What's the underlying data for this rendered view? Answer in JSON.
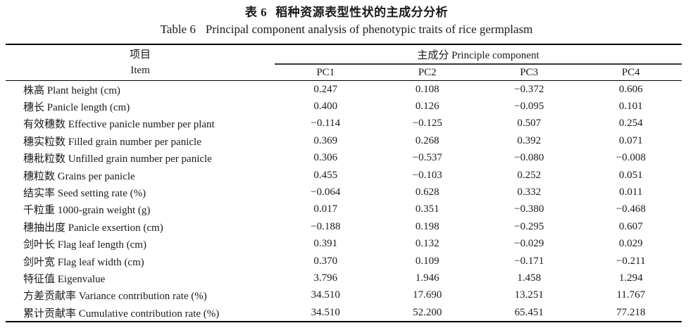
{
  "page": {
    "title_zh_label": "表 6",
    "title_zh_text": "稻种资源表型性状的主成分分析",
    "title_en_label": "Table 6",
    "title_en_text": "Principal component analysis of phenotypic traits of rice germplasm"
  },
  "table": {
    "item_header_zh": "项目",
    "item_header_en": "Item",
    "group_header": "主成分 Principle component",
    "pc_columns": [
      "PC1",
      "PC2",
      "PC3",
      "PC4"
    ],
    "rows": [
      {
        "label": "株高 Plant height (cm)",
        "values": [
          "0.247",
          "0.108",
          "−0.372",
          "0.606"
        ]
      },
      {
        "label": "穗长 Panicle length (cm)",
        "values": [
          "0.400",
          "0.126",
          "−0.095",
          "0.101"
        ]
      },
      {
        "label": "有效穗数 Effective panicle number per plant",
        "values": [
          "−0.114",
          "−0.125",
          "0.507",
          "0.254"
        ]
      },
      {
        "label": "穗实粒数 Filled grain number per panicle",
        "values": [
          "0.369",
          "0.268",
          "0.392",
          "0.071"
        ]
      },
      {
        "label": "穗秕粒数 Unfilled grain number per panicle",
        "values": [
          "0.306",
          "−0.537",
          "−0.080",
          "−0.008"
        ]
      },
      {
        "label": "穗粒数 Grains per panicle",
        "values": [
          "0.455",
          "−0.103",
          "0.252",
          "0.051"
        ]
      },
      {
        "label": "结实率 Seed setting rate (%)",
        "values": [
          "−0.064",
          "0.628",
          "0.332",
          "0.011"
        ]
      },
      {
        "label": "千粒重 1000-grain weight (g)",
        "values": [
          "0.017",
          "0.351",
          "−0.380",
          "−0.468"
        ]
      },
      {
        "label": "穗抽出度 Panicle exsertion (cm)",
        "values": [
          "−0.188",
          "0.198",
          "−0.295",
          "0.607"
        ]
      },
      {
        "label": "剑叶长 Flag leaf length (cm)",
        "values": [
          "0.391",
          "0.132",
          "−0.029",
          "0.029"
        ]
      },
      {
        "label": "剑叶宽 Flag leaf width (cm)",
        "values": [
          "0.370",
          "0.109",
          "−0.171",
          "−0.211"
        ]
      },
      {
        "label": "特征值 Eigenvalue",
        "values": [
          "3.796",
          "1.946",
          "1.458",
          "1.294"
        ]
      },
      {
        "label": "方差贡献率 Variance contribution rate (%)",
        "values": [
          "34.510",
          "17.690",
          "13.251",
          "11.767"
        ]
      },
      {
        "label": "累计贡献率 Cumulative contribution rate (%)",
        "values": [
          "34.510",
          "52.200",
          "65.451",
          "77.218"
        ]
      }
    ]
  },
  "colors": {
    "background": "#ffffff",
    "text": "#1a1a1a",
    "rule_heavy": "#000000",
    "rule_light": "#3a3a3a"
  }
}
